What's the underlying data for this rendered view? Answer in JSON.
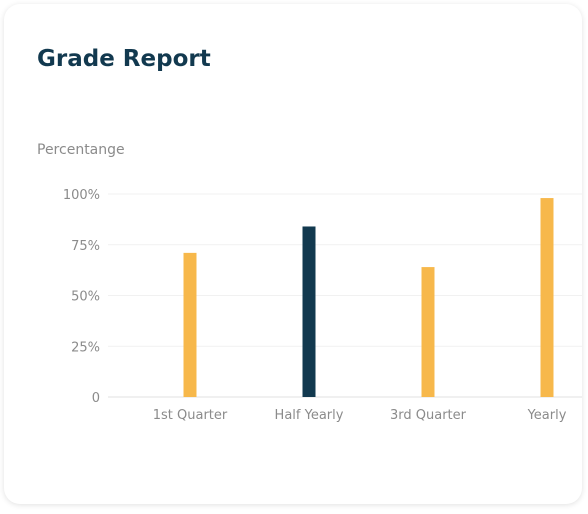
{
  "card": {
    "title": "Grade Report"
  },
  "chart_data": {
    "type": "bar",
    "ylabel": "Percentange",
    "categories": [
      "1st Quarter",
      "Half Yearly",
      "3rd Quarter",
      "Yearly"
    ],
    "values": [
      71,
      84,
      64,
      98
    ],
    "bar_colors": [
      "#f7b84b",
      "#12394f",
      "#f7b84b",
      "#f7b84b"
    ],
    "yticks": [
      "0",
      "25%",
      "50%",
      "75%",
      "100%"
    ],
    "ylim": [
      0,
      100
    ],
    "grid": true
  }
}
